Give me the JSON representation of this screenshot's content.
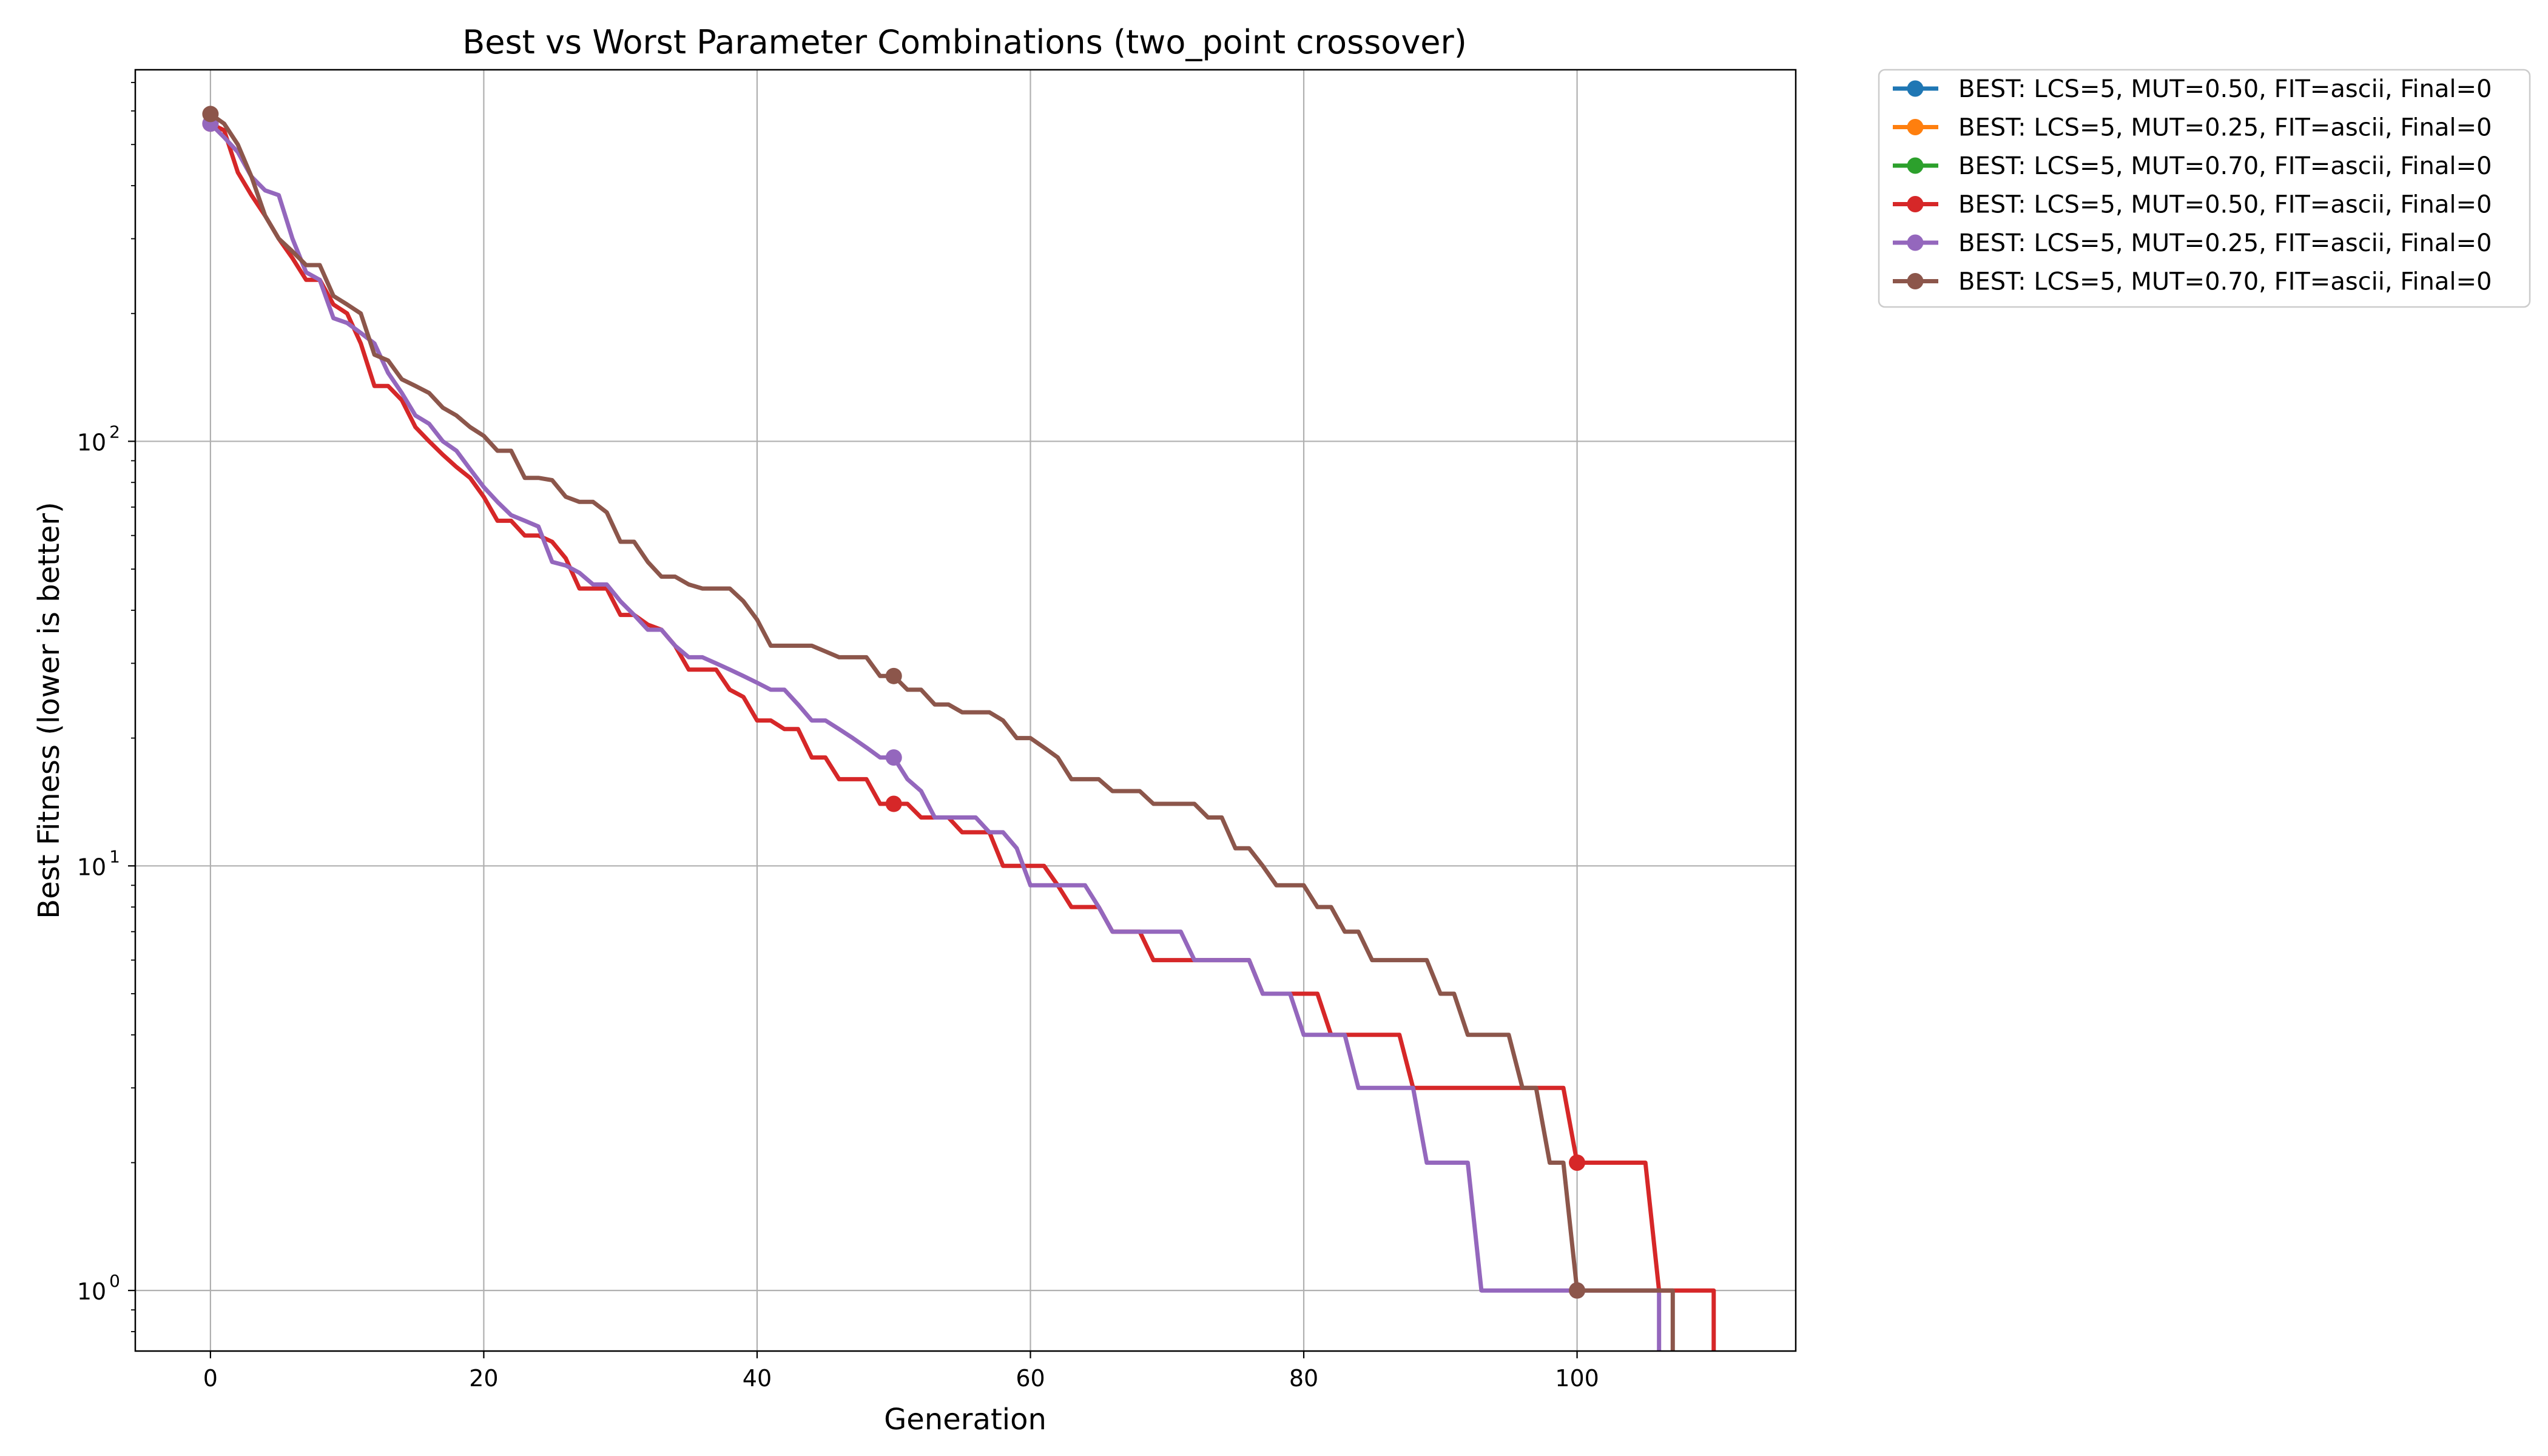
{
  "chart_data": {
    "type": "line",
    "title": "Best vs Worst Parameter Combinations (two_point crossover)",
    "xlabel": "Generation",
    "ylabel": "Best Fitness (lower is better)",
    "xlim": [
      -5.5,
      116
    ],
    "ylim": [
      0.72,
      750
    ],
    "yscale": "log",
    "grid": true,
    "legend_position": "outside-top-right",
    "x_ticks": [
      0,
      20,
      40,
      60,
      80,
      100
    ],
    "y_ticks": [
      {
        "value": 1,
        "base": "10",
        "exp": "0"
      },
      {
        "value": 10,
        "base": "10",
        "exp": "1"
      },
      {
        "value": 100,
        "base": "10",
        "exp": "2"
      }
    ],
    "series": [
      {
        "name": "BEST: LCS=5, MUT=0.50, FIT=ascii, Final=0",
        "color": "#1f77b4",
        "step": 50,
        "x": [],
        "y": []
      },
      {
        "name": "BEST: LCS=5, MUT=0.25, FIT=ascii, Final=0",
        "color": "#ff7f0e",
        "step": 50,
        "x": [],
        "y": []
      },
      {
        "name": "BEST: LCS=5, MUT=0.70, FIT=ascii, Final=0",
        "color": "#2ca02c",
        "step": 50,
        "x": [],
        "y": []
      },
      {
        "name": "BEST: LCS=5, MUT=0.50, FIT=ascii, Final=0",
        "color": "#d62728",
        "step": 50,
        "x": [
          0,
          1,
          2,
          3,
          4,
          5,
          6,
          7,
          8,
          9,
          10,
          11,
          12,
          13,
          14,
          15,
          16,
          17,
          18,
          19,
          20,
          21,
          22,
          23,
          24,
          25,
          26,
          27,
          28,
          29,
          30,
          31,
          32,
          33,
          34,
          35,
          36,
          37,
          38,
          39,
          40,
          41,
          42,
          43,
          44,
          45,
          46,
          47,
          48,
          49,
          50,
          51,
          52,
          53,
          54,
          55,
          56,
          57,
          58,
          59,
          60,
          61,
          62,
          63,
          64,
          65,
          66,
          67,
          68,
          69,
          70,
          71,
          72,
          73,
          74,
          75,
          76,
          77,
          78,
          79,
          80,
          81,
          82,
          83,
          84,
          85,
          86,
          87,
          88,
          89,
          90,
          91,
          92,
          93,
          94,
          95,
          96,
          97,
          98,
          99,
          100,
          101,
          102,
          103,
          104,
          105,
          106,
          107,
          108,
          109,
          110,
          110
        ],
        "y": [
          560,
          540,
          430,
          380,
          340,
          300,
          270,
          240,
          240,
          210,
          200,
          170,
          135,
          135,
          125,
          108,
          100,
          93,
          87,
          82,
          74,
          65,
          65,
          60,
          60,
          58,
          53,
          45,
          45,
          45,
          39,
          39,
          37,
          36,
          33,
          29,
          29,
          29,
          26,
          25,
          22,
          22,
          21,
          21,
          18,
          18,
          16,
          16,
          16,
          14,
          14,
          14,
          13,
          13,
          13,
          12,
          12,
          12,
          10,
          10,
          10,
          10,
          9,
          8,
          8,
          8,
          7,
          7,
          7,
          6,
          6,
          6,
          6,
          6,
          6,
          6,
          6,
          5,
          5,
          5,
          5,
          5,
          4,
          4,
          4,
          4,
          4,
          4,
          3,
          3,
          3,
          3,
          3,
          3,
          3,
          3,
          3,
          3,
          3,
          3,
          2,
          2,
          2,
          2,
          2,
          2,
          1,
          1,
          1,
          1,
          1,
          0.5
        ]
      },
      {
        "name": "BEST: LCS=5, MUT=0.25, FIT=ascii, Final=0",
        "color": "#9467bd",
        "step": 50,
        "x": [
          0,
          1,
          2,
          3,
          4,
          5,
          6,
          7,
          8,
          9,
          10,
          11,
          12,
          13,
          14,
          15,
          16,
          17,
          18,
          19,
          20,
          21,
          22,
          23,
          24,
          25,
          26,
          27,
          28,
          29,
          30,
          31,
          32,
          33,
          34,
          35,
          36,
          37,
          38,
          39,
          40,
          41,
          42,
          43,
          44,
          45,
          46,
          47,
          48,
          49,
          50,
          51,
          52,
          53,
          54,
          55,
          56,
          57,
          58,
          59,
          60,
          61,
          62,
          63,
          64,
          65,
          66,
          67,
          68,
          69,
          70,
          71,
          72,
          73,
          74,
          75,
          76,
          77,
          78,
          79,
          80,
          81,
          82,
          83,
          84,
          85,
          86,
          87,
          88,
          89,
          90,
          91,
          92,
          93,
          94,
          95,
          96,
          97,
          98,
          99,
          100,
          101,
          102,
          103,
          104,
          105,
          106,
          106
        ],
        "y": [
          560,
          520,
          480,
          420,
          390,
          380,
          300,
          250,
          240,
          195,
          190,
          180,
          170,
          145,
          130,
          115,
          110,
          100,
          95,
          86,
          78,
          72,
          67,
          65,
          63,
          52,
          51,
          49,
          46,
          46,
          42,
          39,
          36,
          36,
          33,
          31,
          31,
          30,
          29,
          28,
          27,
          26,
          26,
          24,
          22,
          22,
          21,
          20,
          19,
          18,
          18,
          16,
          15,
          13,
          13,
          13,
          13,
          12,
          12,
          11,
          9,
          9,
          9,
          9,
          9,
          8,
          7,
          7,
          7,
          7,
          7,
          7,
          6,
          6,
          6,
          6,
          6,
          5,
          5,
          5,
          4,
          4,
          4,
          4,
          3,
          3,
          3,
          3,
          3,
          2,
          2,
          2,
          2,
          1,
          1,
          1,
          1,
          1,
          1,
          1,
          1,
          1,
          1,
          1,
          1,
          1,
          1,
          0.5
        ]
      },
      {
        "name": "BEST: LCS=5, MUT=0.70, FIT=ascii, Final=0",
        "color": "#8c564b",
        "step": 50,
        "x": [
          0,
          1,
          2,
          3,
          4,
          5,
          6,
          7,
          8,
          9,
          10,
          11,
          12,
          13,
          14,
          15,
          16,
          17,
          18,
          19,
          20,
          21,
          22,
          23,
          24,
          25,
          26,
          27,
          28,
          29,
          30,
          31,
          32,
          33,
          34,
          35,
          36,
          37,
          38,
          39,
          40,
          41,
          42,
          43,
          44,
          45,
          46,
          47,
          48,
          49,
          50,
          51,
          52,
          53,
          54,
          55,
          56,
          57,
          58,
          59,
          60,
          61,
          62,
          63,
          64,
          65,
          66,
          67,
          68,
          69,
          70,
          71,
          72,
          73,
          74,
          75,
          76,
          77,
          78,
          79,
          80,
          81,
          82,
          83,
          84,
          85,
          86,
          87,
          88,
          89,
          90,
          91,
          92,
          93,
          94,
          95,
          96,
          97,
          98,
          99,
          100,
          101,
          102,
          103,
          104,
          105,
          106,
          107,
          107
        ],
        "y": [
          590,
          560,
          500,
          420,
          340,
          300,
          280,
          260,
          260,
          220,
          210,
          200,
          160,
          155,
          140,
          135,
          130,
          120,
          115,
          108,
          103,
          95,
          95,
          82,
          82,
          81,
          74,
          72,
          72,
          68,
          58,
          58,
          52,
          48,
          48,
          46,
          45,
          45,
          45,
          42,
          38,
          33,
          33,
          33,
          33,
          32,
          31,
          31,
          31,
          28,
          28,
          26,
          26,
          24,
          24,
          23,
          23,
          23,
          22,
          20,
          20,
          19,
          18,
          16,
          16,
          16,
          15,
          15,
          15,
          14,
          14,
          14,
          14,
          13,
          13,
          11,
          11,
          10,
          9,
          9,
          9,
          8,
          8,
          7,
          7,
          6,
          6,
          6,
          6,
          6,
          5,
          5,
          4,
          4,
          4,
          4,
          3,
          3,
          2,
          2,
          1,
          1,
          1,
          1,
          1,
          1,
          1,
          1,
          0.5
        ]
      }
    ]
  }
}
